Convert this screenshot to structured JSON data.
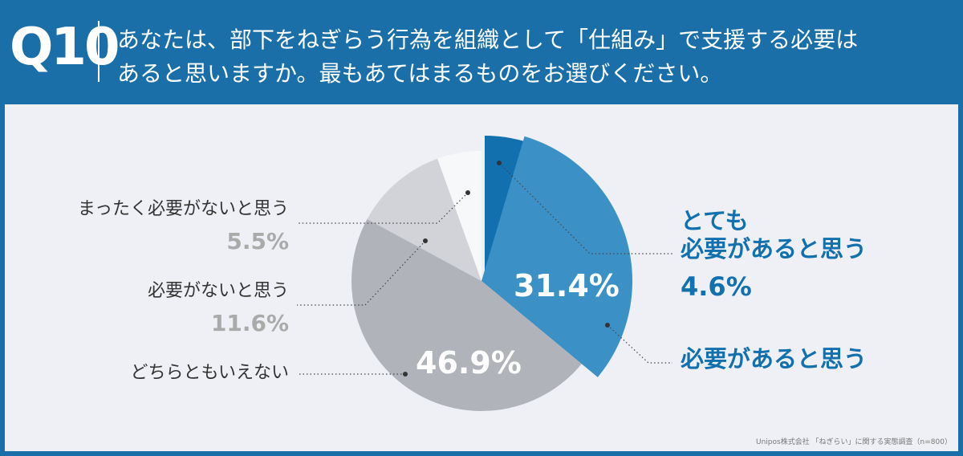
{
  "header": {
    "label": "Q10",
    "question_lines": [
      "あなたは、部下をねぎらう行為を組織として「仕組み」で支援する必要は",
      "あると思いますか。最もあてはまるものをお選びください。"
    ]
  },
  "chart_data": {
    "type": "pie",
    "categories": [
      "とても\n必要があると思う",
      "必要があると思う",
      "どちらともいえない",
      "必要がないと思う",
      "まったく必要がないと思う"
    ],
    "values": [
      4.6,
      31.4,
      46.9,
      11.6,
      5.5
    ],
    "value_labels": [
      "4.6%",
      "31.4%",
      "46.9%",
      "11.6%",
      "5.5%"
    ],
    "colors": [
      "#1170ad",
      "#3b91c5",
      "#b1b3bb",
      "#d2d3d8",
      "#f7f8fa"
    ]
  },
  "footnote": "Unipos株式会社 「ねぎらい」に関する実態調査（n=800）"
}
